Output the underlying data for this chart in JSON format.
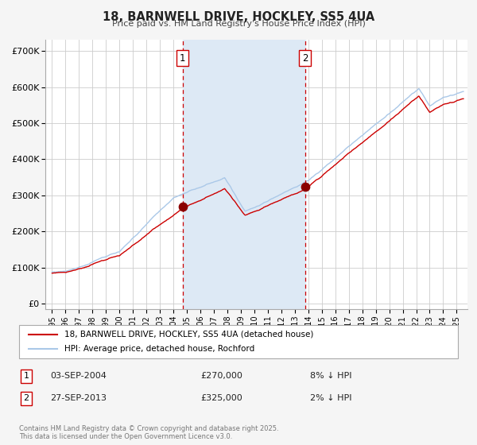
{
  "title": "18, BARNWELL DRIVE, HOCKLEY, SS5 4UA",
  "subtitle": "Price paid vs. HM Land Registry's House Price Index (HPI)",
  "legend_line1": "18, BARNWELL DRIVE, HOCKLEY, SS5 4UA (detached house)",
  "legend_line2": "HPI: Average price, detached house, Rochford",
  "sale1_date": "03-SEP-2004",
  "sale1_price": 270000,
  "sale1_label": "8% ↓ HPI",
  "sale2_date": "27-SEP-2013",
  "sale2_price": 325000,
  "sale2_label": "2% ↓ HPI",
  "sale1_x": 2004.67,
  "sale2_x": 2013.75,
  "yticks": [
    0,
    100000,
    200000,
    300000,
    400000,
    500000,
    600000,
    700000
  ],
  "ytick_labels": [
    "£0",
    "£100K",
    "£200K",
    "£300K",
    "£400K",
    "£500K",
    "£600K",
    "£700K"
  ],
  "xlim": [
    1994.5,
    2025.8
  ],
  "ylim": [
    -15000,
    730000
  ],
  "background_color": "#f5f5f5",
  "plot_bg_color": "#ffffff",
  "shaded_region_color": "#dde9f5",
  "hpi_line_color": "#aac8e8",
  "price_line_color": "#cc0000",
  "dot_color": "#8b0000",
  "vline_color": "#cc0000",
  "grid_color": "#cccccc",
  "footer_text": "Contains HM Land Registry data © Crown copyright and database right 2025.\nThis data is licensed under the Open Government Licence v3.0.",
  "xtick_years": [
    1995,
    1996,
    1997,
    1998,
    1999,
    2000,
    2001,
    2002,
    2003,
    2004,
    2005,
    2006,
    2007,
    2008,
    2009,
    2010,
    2011,
    2012,
    2013,
    2014,
    2015,
    2016,
    2017,
    2018,
    2019,
    2020,
    2021,
    2022,
    2023,
    2024,
    2025
  ]
}
